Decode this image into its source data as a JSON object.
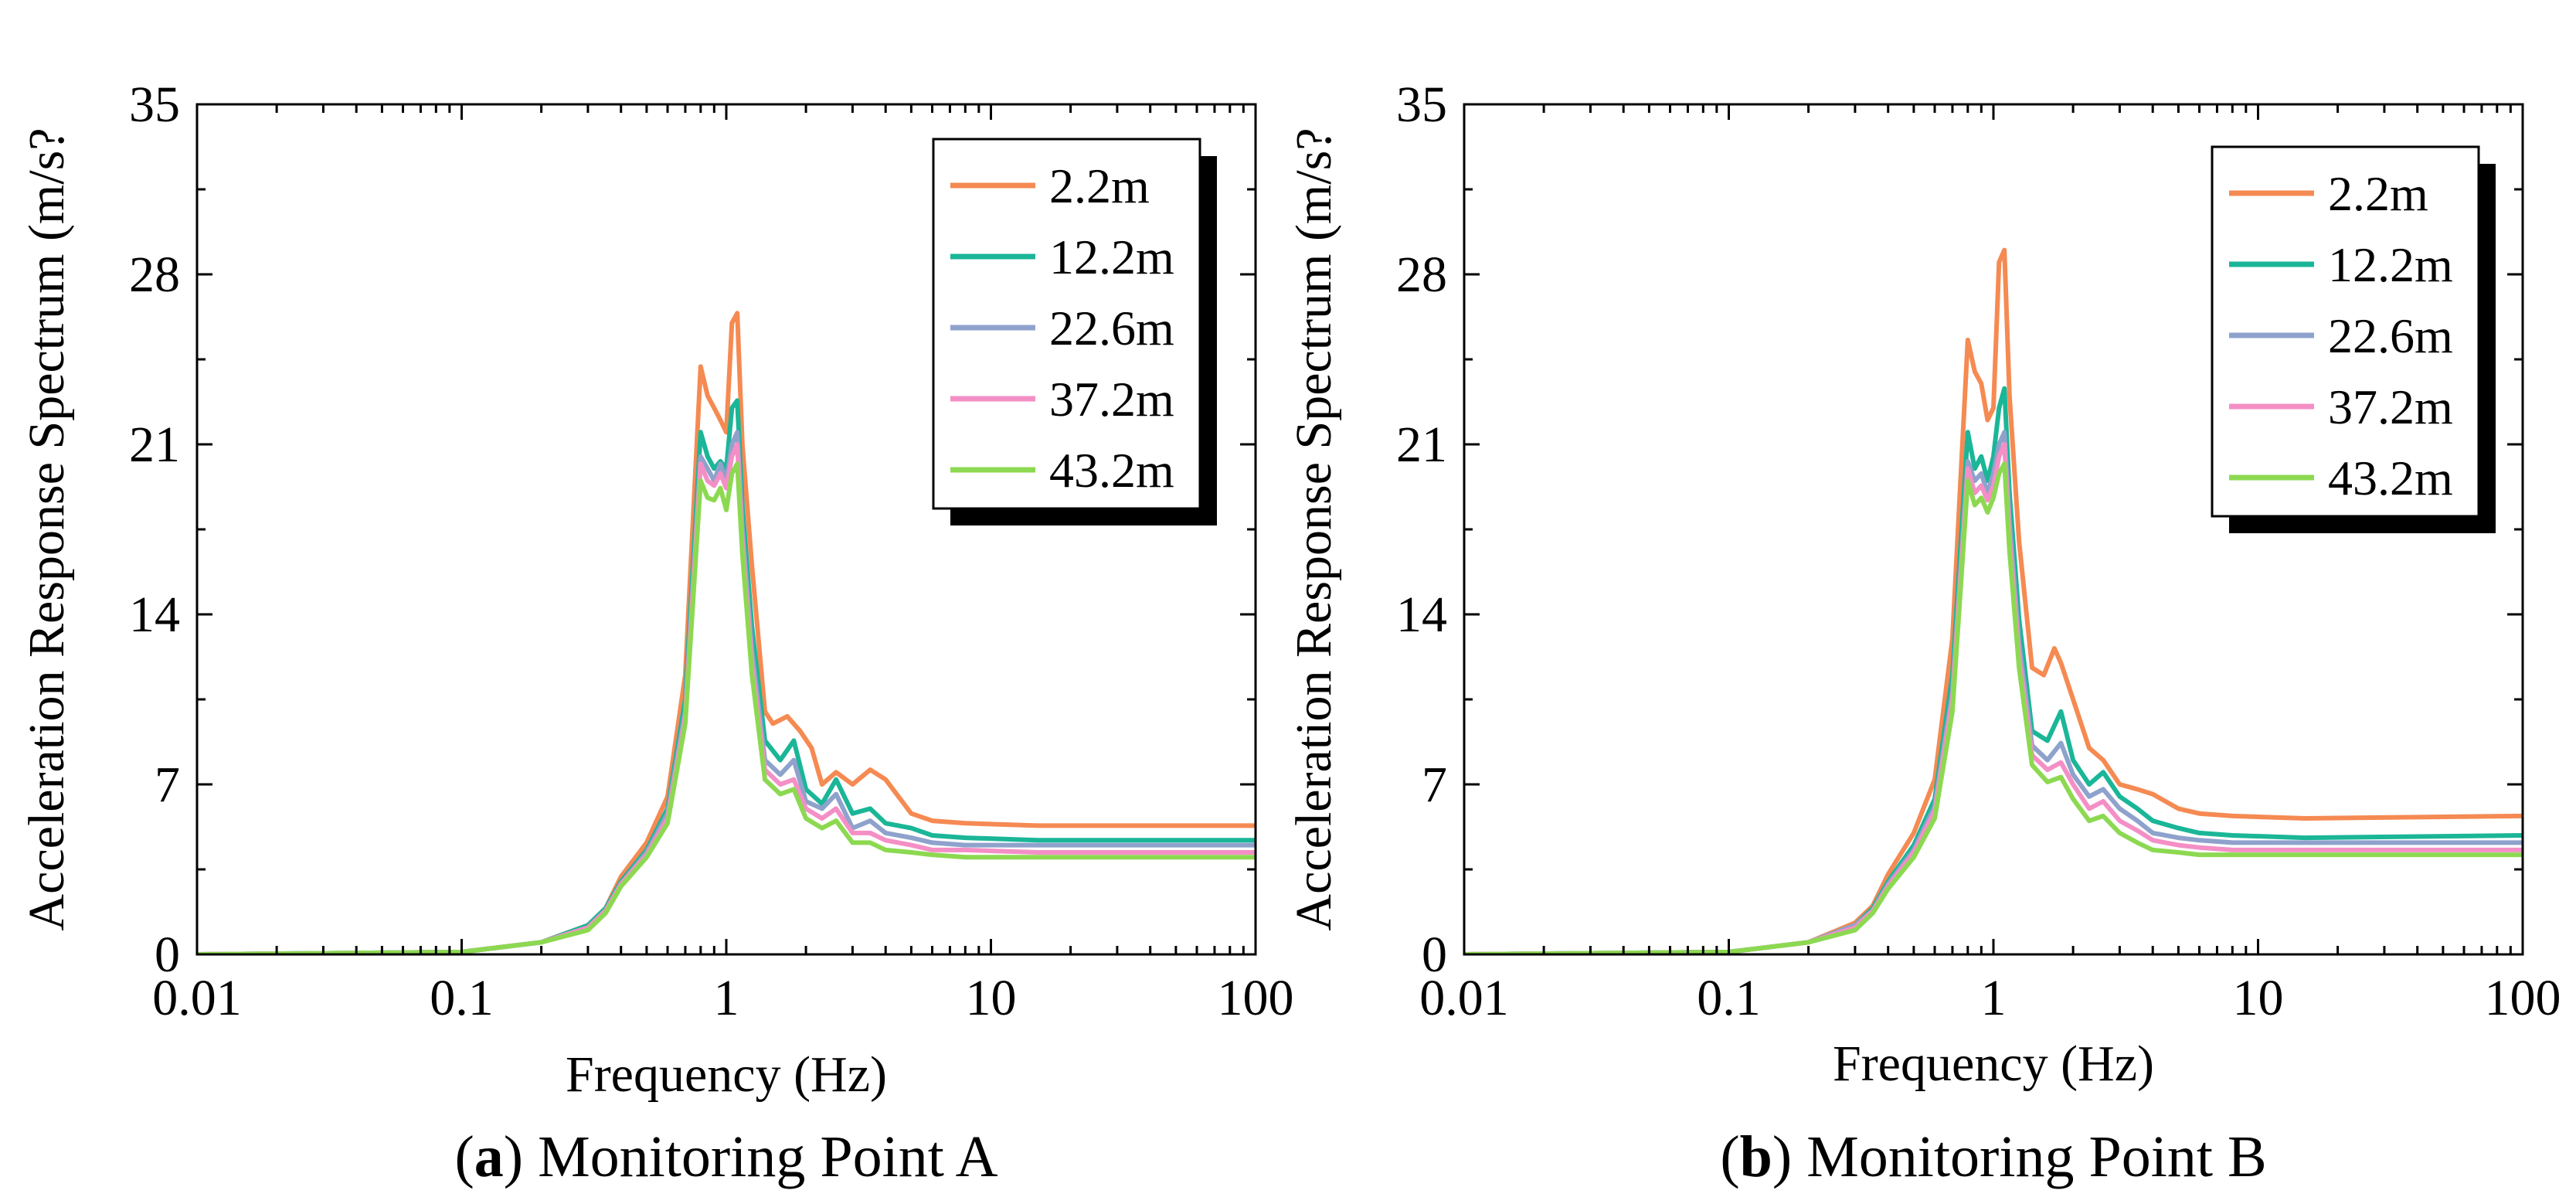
{
  "figure": {
    "panels": [
      {
        "label": "a",
        "caption": "Monitoring Point A"
      },
      {
        "label": "b",
        "caption": "Monitoring Point B"
      }
    ]
  },
  "chart_data": [
    {
      "type": "line",
      "title": "",
      "xlabel": "Frequency (Hz)",
      "ylabel": "Acceleration Response Spectrum (m/s?",
      "xscale": "log",
      "xlim": [
        0.01,
        100
      ],
      "ylim": [
        0,
        35
      ],
      "xticks": [
        0.01,
        0.1,
        1,
        10,
        100
      ],
      "xtick_labels": [
        "0.01",
        "0.1",
        "1",
        "10",
        "100"
      ],
      "yticks": [
        0,
        7,
        14,
        21,
        28,
        35
      ],
      "ytick_labels": [
        "0",
        "7",
        "14",
        "21",
        "28",
        "35"
      ],
      "grid": false,
      "legend_position": "top-right",
      "series": [
        {
          "name": "2.2m",
          "color": "#f58a52",
          "x": [
            0.01,
            0.1,
            0.2,
            0.3,
            0.35,
            0.4,
            0.5,
            0.6,
            0.7,
            0.8,
            0.85,
            0.9,
            0.95,
            1.0,
            1.05,
            1.1,
            1.15,
            1.25,
            1.4,
            1.5,
            1.7,
            1.9,
            2.1,
            2.3,
            2.6,
            3.0,
            3.5,
            4.0,
            5.0,
            6.0,
            8.0,
            15,
            100
          ],
          "y": [
            0,
            0.1,
            0.5,
            1.2,
            1.9,
            3.2,
            4.6,
            6.5,
            11.5,
            24.2,
            23.0,
            22.5,
            22.0,
            21.5,
            26.0,
            26.4,
            21.0,
            16.0,
            10.0,
            9.5,
            9.8,
            9.2,
            8.5,
            7.0,
            7.5,
            7.0,
            7.6,
            7.2,
            5.8,
            5.5,
            5.4,
            5.3,
            5.3
          ]
        },
        {
          "name": "12.2m",
          "color": "#1ab697",
          "x": [
            0.01,
            0.1,
            0.2,
            0.3,
            0.35,
            0.4,
            0.5,
            0.6,
            0.7,
            0.8,
            0.85,
            0.9,
            0.95,
            1.0,
            1.05,
            1.1,
            1.15,
            1.25,
            1.4,
            1.6,
            1.8,
            2.0,
            2.3,
            2.6,
            3.0,
            3.5,
            4.0,
            5.0,
            6.0,
            8.0,
            15,
            100
          ],
          "y": [
            0,
            0.1,
            0.5,
            1.2,
            1.9,
            3.0,
            4.3,
            6.0,
            10.5,
            21.5,
            20.5,
            20.0,
            20.3,
            20.0,
            22.5,
            22.8,
            18.5,
            13.5,
            8.8,
            8.0,
            8.8,
            6.8,
            6.2,
            7.2,
            5.8,
            6.0,
            5.4,
            5.2,
            4.9,
            4.8,
            4.7,
            4.7
          ]
        },
        {
          "name": "22.6m",
          "color": "#8ea2cc",
          "x": [
            0.01,
            0.1,
            0.2,
            0.3,
            0.35,
            0.4,
            0.5,
            0.6,
            0.7,
            0.8,
            0.85,
            0.9,
            0.95,
            1.0,
            1.05,
            1.1,
            1.15,
            1.25,
            1.4,
            1.6,
            1.8,
            2.0,
            2.3,
            2.6,
            3.0,
            3.5,
            4.0,
            5.0,
            6.0,
            8.0,
            15,
            100
          ],
          "y": [
            0,
            0.1,
            0.5,
            1.1,
            1.8,
            2.9,
            4.2,
            5.8,
            10.0,
            20.5,
            20.0,
            19.5,
            20.2,
            19.5,
            21.0,
            21.5,
            17.5,
            12.5,
            8.0,
            7.4,
            8.0,
            6.3,
            6.0,
            6.6,
            5.2,
            5.5,
            5.0,
            4.8,
            4.6,
            4.5,
            4.5,
            4.5
          ]
        },
        {
          "name": "37.2m",
          "color": "#f48fc6",
          "x": [
            0.01,
            0.1,
            0.2,
            0.3,
            0.35,
            0.4,
            0.5,
            0.6,
            0.7,
            0.8,
            0.85,
            0.9,
            0.95,
            1.0,
            1.05,
            1.1,
            1.15,
            1.25,
            1.4,
            1.6,
            1.8,
            2.0,
            2.3,
            2.6,
            3.0,
            3.5,
            4.0,
            5.0,
            6.0,
            8.0,
            15,
            100
          ],
          "y": [
            0,
            0.1,
            0.5,
            1.1,
            1.8,
            2.9,
            4.1,
            5.6,
            9.8,
            20.2,
            19.5,
            19.3,
            19.8,
            19.2,
            20.5,
            21.0,
            17.0,
            12.0,
            7.6,
            7.0,
            7.2,
            6.0,
            5.6,
            6.0,
            5.0,
            5.0,
            4.7,
            4.5,
            4.3,
            4.3,
            4.2,
            4.2
          ]
        },
        {
          "name": "43.2m",
          "color": "#8cd951",
          "x": [
            0.01,
            0.1,
            0.2,
            0.3,
            0.35,
            0.4,
            0.5,
            0.6,
            0.7,
            0.8,
            0.85,
            0.9,
            0.95,
            1.0,
            1.05,
            1.1,
            1.15,
            1.25,
            1.4,
            1.6,
            1.8,
            2.0,
            2.3,
            2.6,
            3.0,
            3.5,
            4.0,
            5.0,
            6.0,
            8.0,
            15,
            100
          ],
          "y": [
            0,
            0.1,
            0.5,
            1.0,
            1.7,
            2.8,
            4.0,
            5.4,
            9.5,
            19.5,
            18.8,
            18.7,
            19.2,
            18.3,
            19.8,
            20.2,
            16.5,
            11.5,
            7.2,
            6.6,
            6.8,
            5.6,
            5.2,
            5.5,
            4.6,
            4.6,
            4.3,
            4.2,
            4.1,
            4.0,
            4.0,
            4.0
          ]
        }
      ]
    },
    {
      "type": "line",
      "title": "",
      "xlabel": "Frequency (Hz)",
      "ylabel": "Acceleration Response Spectrum (m/s?",
      "xscale": "log",
      "xlim": [
        0.01,
        100
      ],
      "ylim": [
        0,
        35
      ],
      "xticks": [
        0.01,
        0.1,
        1,
        10,
        100
      ],
      "xtick_labels": [
        "0.01",
        "0.1",
        "1",
        "10",
        "100"
      ],
      "yticks": [
        0,
        7,
        14,
        21,
        28,
        35
      ],
      "ytick_labels": [
        "0",
        "7",
        "14",
        "21",
        "28",
        "35"
      ],
      "grid": false,
      "legend_position": "top-right",
      "series": [
        {
          "name": "2.2m",
          "color": "#f58a52",
          "x": [
            0.01,
            0.1,
            0.2,
            0.3,
            0.35,
            0.4,
            0.5,
            0.6,
            0.7,
            0.8,
            0.85,
            0.9,
            0.95,
            1.0,
            1.05,
            1.1,
            1.15,
            1.25,
            1.4,
            1.55,
            1.7,
            1.8,
            2.0,
            2.3,
            2.6,
            3.0,
            3.5,
            4.0,
            5.0,
            6.0,
            8.0,
            15,
            100
          ],
          "y": [
            0,
            0.1,
            0.5,
            1.3,
            2.0,
            3.3,
            5.0,
            7.2,
            13.0,
            25.3,
            24.0,
            23.5,
            22.0,
            22.5,
            28.5,
            29.0,
            23.0,
            17.0,
            11.8,
            11.5,
            12.6,
            12.0,
            10.5,
            8.5,
            8.0,
            7.0,
            6.8,
            6.6,
            6.0,
            5.8,
            5.7,
            5.6,
            5.7
          ]
        },
        {
          "name": "12.2m",
          "color": "#1ab697",
          "x": [
            0.01,
            0.1,
            0.2,
            0.3,
            0.35,
            0.4,
            0.5,
            0.6,
            0.7,
            0.8,
            0.85,
            0.9,
            0.95,
            1.0,
            1.05,
            1.1,
            1.15,
            1.25,
            1.4,
            1.6,
            1.8,
            2.0,
            2.3,
            2.6,
            3.0,
            3.5,
            4.0,
            5.0,
            6.0,
            8.0,
            15,
            100
          ],
          "y": [
            0,
            0.1,
            0.5,
            1.2,
            1.9,
            3.0,
            4.5,
            6.4,
            11.5,
            21.5,
            20.0,
            20.5,
            19.5,
            20.5,
            22.5,
            23.3,
            19.0,
            13.8,
            9.2,
            8.8,
            10.0,
            8.0,
            7.0,
            7.5,
            6.5,
            6.0,
            5.5,
            5.2,
            5.0,
            4.9,
            4.8,
            4.9
          ]
        },
        {
          "name": "22.6m",
          "color": "#8ea2cc",
          "x": [
            0.01,
            0.1,
            0.2,
            0.3,
            0.35,
            0.4,
            0.5,
            0.6,
            0.7,
            0.8,
            0.85,
            0.9,
            0.95,
            1.0,
            1.05,
            1.1,
            1.15,
            1.25,
            1.4,
            1.6,
            1.8,
            2.0,
            2.3,
            2.6,
            3.0,
            3.5,
            4.0,
            5.0,
            6.0,
            8.0,
            15,
            100
          ],
          "y": [
            0,
            0.1,
            0.5,
            1.2,
            1.8,
            2.9,
            4.3,
            6.1,
            10.8,
            20.3,
            19.5,
            19.8,
            19.0,
            19.8,
            21.0,
            21.5,
            17.8,
            12.8,
            8.6,
            8.0,
            8.7,
            7.4,
            6.5,
            6.8,
            6.0,
            5.5,
            5.0,
            4.8,
            4.7,
            4.6,
            4.6,
            4.6
          ]
        },
        {
          "name": "37.2m",
          "color": "#f48fc6",
          "x": [
            0.01,
            0.1,
            0.2,
            0.3,
            0.35,
            0.4,
            0.5,
            0.6,
            0.7,
            0.8,
            0.85,
            0.9,
            0.95,
            1.0,
            1.05,
            1.1,
            1.15,
            1.25,
            1.4,
            1.6,
            1.8,
            2.0,
            2.3,
            2.6,
            3.0,
            3.5,
            4.0,
            5.0,
            6.0,
            8.0,
            15,
            100
          ],
          "y": [
            0,
            0.1,
            0.5,
            1.1,
            1.8,
            2.8,
            4.2,
            5.9,
            10.5,
            20.0,
            19.0,
            19.3,
            18.7,
            19.3,
            20.5,
            21.0,
            17.2,
            12.3,
            8.2,
            7.6,
            7.9,
            7.0,
            6.0,
            6.3,
            5.5,
            5.1,
            4.7,
            4.5,
            4.4,
            4.3,
            4.3,
            4.3
          ]
        },
        {
          "name": "43.2m",
          "color": "#8cd951",
          "x": [
            0.01,
            0.1,
            0.2,
            0.3,
            0.35,
            0.4,
            0.5,
            0.6,
            0.7,
            0.8,
            0.85,
            0.9,
            0.95,
            1.0,
            1.05,
            1.1,
            1.15,
            1.25,
            1.4,
            1.6,
            1.8,
            2.0,
            2.3,
            2.6,
            3.0,
            3.5,
            4.0,
            5.0,
            6.0,
            8.0,
            15,
            100
          ],
          "y": [
            0,
            0.1,
            0.5,
            1.0,
            1.7,
            2.7,
            4.0,
            5.6,
            10.0,
            19.5,
            18.5,
            18.8,
            18.2,
            18.8,
            19.8,
            20.2,
            16.6,
            11.8,
            7.8,
            7.1,
            7.3,
            6.4,
            5.5,
            5.7,
            5.0,
            4.6,
            4.3,
            4.2,
            4.1,
            4.1,
            4.1,
            4.1
          ]
        }
      ]
    }
  ]
}
